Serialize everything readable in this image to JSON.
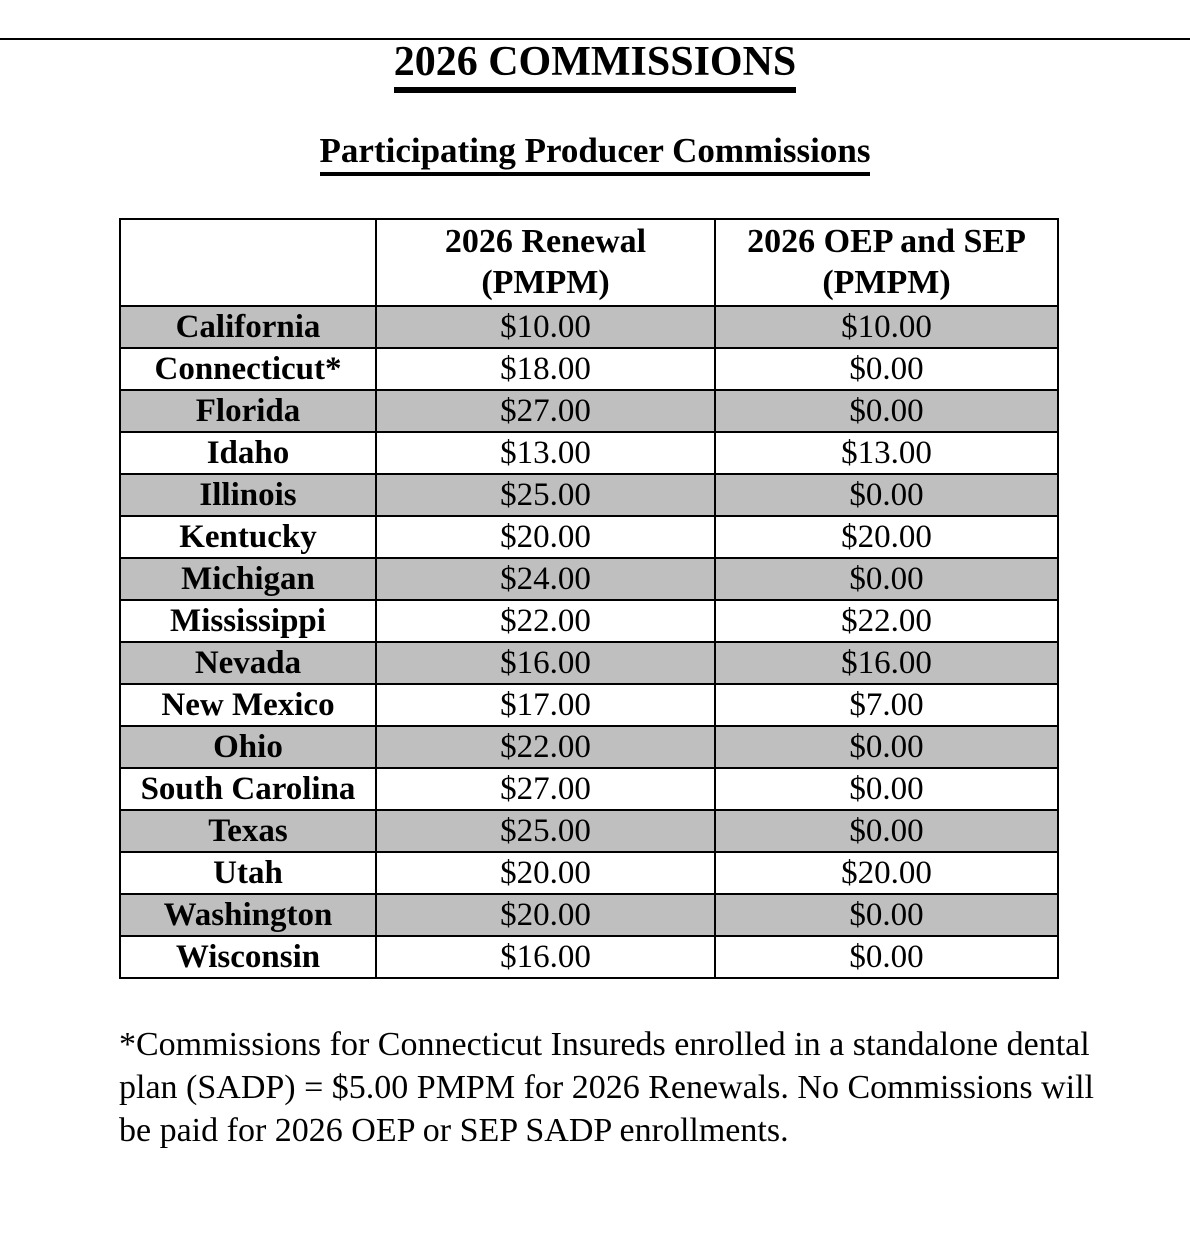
{
  "page": {
    "title": "2026 COMMISSIONS",
    "subtitle": "Participating Producer Commissions"
  },
  "table": {
    "row_shade_color": "#bfbfbf",
    "header": {
      "col1": "",
      "col2_line1": "2026 Renewal",
      "col2_line2": "(PMPM)",
      "col3_line1": "2026 OEP and SEP",
      "col3_line2": "(PMPM)"
    },
    "rows": [
      {
        "state": "California",
        "renewal": "$10.00",
        "oep_sep": "$10.00"
      },
      {
        "state": "Connecticut*",
        "renewal": "$18.00",
        "oep_sep": "$0.00"
      },
      {
        "state": "Florida",
        "renewal": "$27.00",
        "oep_sep": "$0.00"
      },
      {
        "state": "Idaho",
        "renewal": "$13.00",
        "oep_sep": "$13.00"
      },
      {
        "state": "Illinois",
        "renewal": "$25.00",
        "oep_sep": "$0.00"
      },
      {
        "state": "Kentucky",
        "renewal": "$20.00",
        "oep_sep": "$20.00"
      },
      {
        "state": "Michigan",
        "renewal": "$24.00",
        "oep_sep": "$0.00"
      },
      {
        "state": "Mississippi",
        "renewal": "$22.00",
        "oep_sep": "$22.00"
      },
      {
        "state": "Nevada",
        "renewal": "$16.00",
        "oep_sep": "$16.00"
      },
      {
        "state": "New Mexico",
        "renewal": "$17.00",
        "oep_sep": "$7.00"
      },
      {
        "state": "Ohio",
        "renewal": "$22.00",
        "oep_sep": "$0.00"
      },
      {
        "state": "South Carolina",
        "renewal": "$27.00",
        "oep_sep": "$0.00"
      },
      {
        "state": "Texas",
        "renewal": "$25.00",
        "oep_sep": "$0.00"
      },
      {
        "state": "Utah",
        "renewal": "$20.00",
        "oep_sep": "$20.00"
      },
      {
        "state": "Washington",
        "renewal": "$20.00",
        "oep_sep": "$0.00"
      },
      {
        "state": "Wisconsin",
        "renewal": "$16.00",
        "oep_sep": "$0.00"
      }
    ]
  },
  "footnote": {
    "lines": [
      "*Commissions for Connecticut Insureds enrolled in a standalone dental",
      "plan (SADP) = $5.00 PMPM for 2026 Renewals. No Commissions will",
      "be paid for 2026 OEP or SEP SADP enrollments."
    ]
  }
}
